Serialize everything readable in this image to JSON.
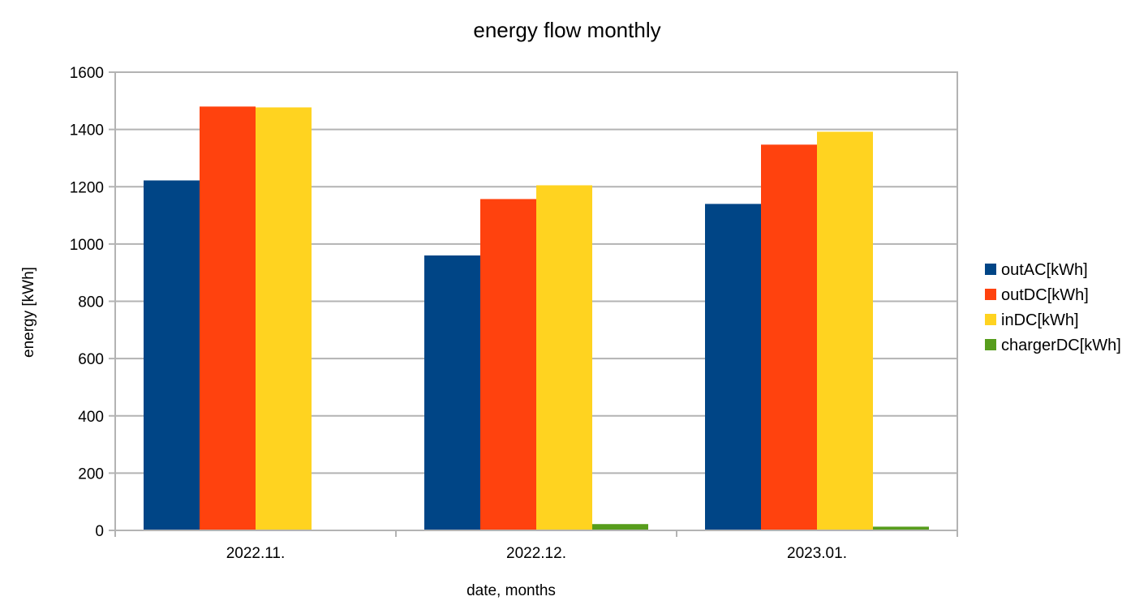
{
  "chart_data": {
    "type": "bar",
    "title": "energy flow monthly",
    "xlabel": "date, months",
    "ylabel": "energy [kWh]",
    "categories": [
      "2022.11.",
      "2022.12.",
      "2023.01."
    ],
    "ylim": [
      0,
      1600
    ],
    "yticks": [
      0,
      200,
      400,
      600,
      800,
      1000,
      1200,
      1400,
      1600
    ],
    "grid": true,
    "legend_position": "right",
    "series": [
      {
        "name": "outAC[kWh]",
        "color": "#004586",
        "values": [
          1222,
          960,
          1140
        ]
      },
      {
        "name": "outDC[kWh]",
        "color": "#ff420e",
        "values": [
          1480,
          1157,
          1347
        ]
      },
      {
        "name": "inDC[kWh]",
        "color": "#ffd320",
        "values": [
          1477,
          1205,
          1392
        ]
      },
      {
        "name": "chargerDC[kWh]",
        "color": "#579d1c",
        "values": [
          0,
          22,
          13
        ]
      }
    ]
  }
}
